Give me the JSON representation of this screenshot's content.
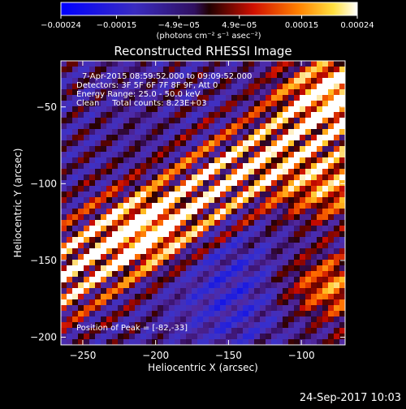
{
  "chart_data": {
    "type": "heatmap",
    "title": "Reconstructed RHESSI Image",
    "xlabel": "Heliocentric X (arcsec)",
    "ylabel": "Heliocentric Y (arcsec)",
    "xlim": [
      -265,
      -70
    ],
    "ylim": [
      -205,
      -20
    ],
    "x_ticks": [
      -250,
      -200,
      -150,
      -100
    ],
    "x_tick_labels": [
      "−250",
      "−200",
      "−150",
      "−100"
    ],
    "y_ticks": [
      -50,
      -100,
      -150,
      -200
    ],
    "y_tick_labels": [
      "−50",
      "−100",
      "−150",
      "−200"
    ],
    "colorbar": {
      "range": [
        -0.00024,
        0.00024
      ],
      "ticks": [
        -0.00024,
        -0.00015,
        -4.9e-05,
        4.9e-05,
        0.00015,
        0.00024
      ],
      "tick_labels": [
        "−0.00024",
        "−0.00015",
        "−4.9e−05",
        "4.9e−05",
        "0.00015",
        "0.00024"
      ],
      "unit_label": "(photons cm⁻² s⁻¹ asec⁻²)",
      "colors": [
        "#0000ff",
        "#4030a0",
        "#200000",
        "#ff2000",
        "#ffa000",
        "#ffffff"
      ]
    },
    "annotations": {
      "time_range": "7-Apr-2015 08:59:52.000 to 09:09:52.000",
      "detectors": "Detectors: 3F 5F 6F 7F 8F 9F, Att 0",
      "energy_range": "Energy Range: 25.0 - 50.0 keV",
      "clean": "Clean     Total counts: 8.23E+03",
      "peak": "Position of Peak = [-82,-33]"
    },
    "peak_position": [
      -82,
      -33
    ]
  },
  "footer": {
    "timestamp": "24-Sep-2017 10:03"
  }
}
